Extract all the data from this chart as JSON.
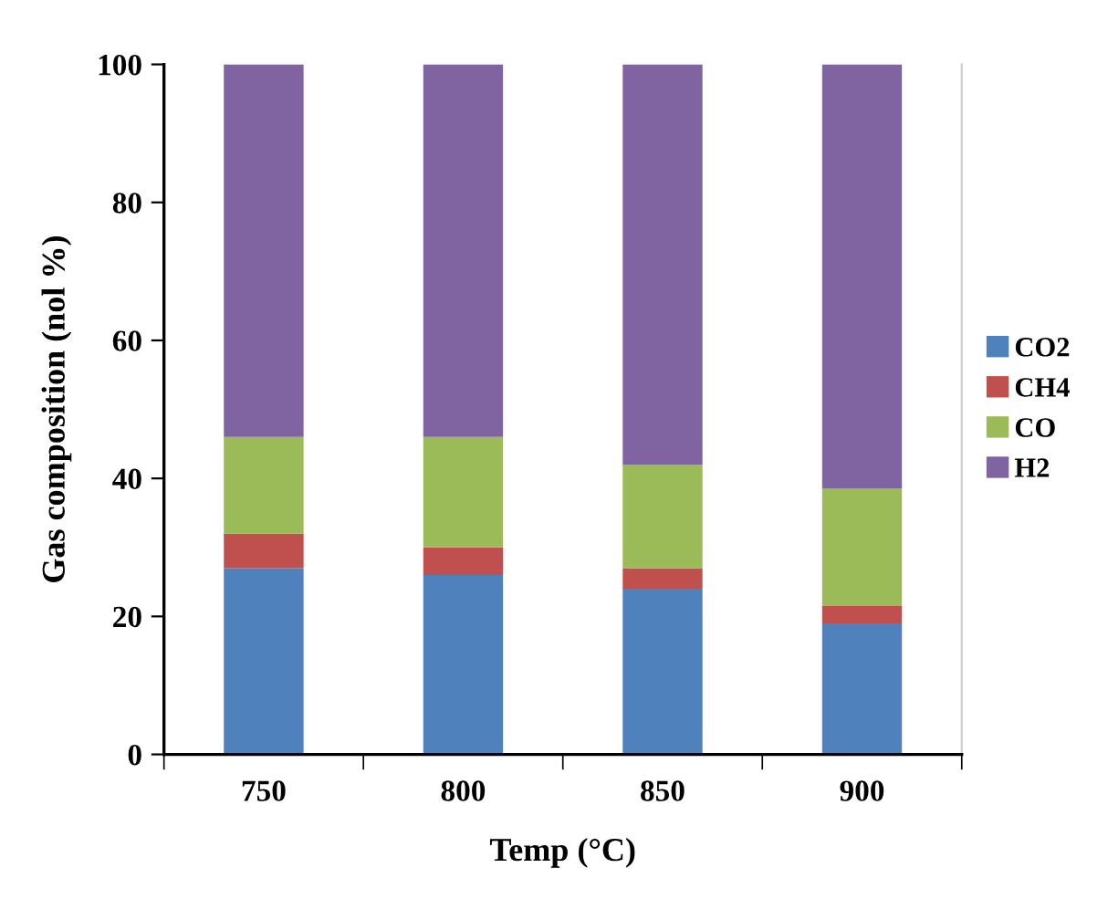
{
  "chart_data": {
    "type": "bar",
    "stacked": true,
    "xlabel": "Temp (°C)",
    "ylabel": "Gas composition (nol %)",
    "categories": [
      "750",
      "800",
      "850",
      "900"
    ],
    "series": [
      {
        "name": "CO2",
        "color": "#4f81bd",
        "values": [
          27,
          26,
          24,
          19
        ]
      },
      {
        "name": "CH4",
        "color": "#c0504d",
        "values": [
          5,
          4,
          3,
          2.5
        ]
      },
      {
        "name": "CO",
        "color": "#9bbb59",
        "values": [
          14,
          16,
          15,
          17
        ]
      },
      {
        "name": "H2",
        "color": "#8064a2",
        "values": [
          54,
          54,
          58,
          61.5
        ]
      }
    ],
    "ylim": [
      0,
      100
    ],
    "yticks": [
      0,
      20,
      40,
      60,
      80,
      100
    ],
    "grid": false,
    "legend": "right"
  }
}
